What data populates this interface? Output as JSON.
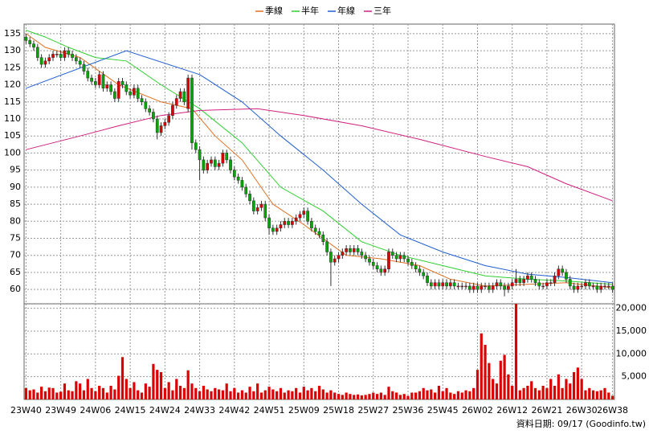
{
  "chart_data": [
    {
      "type": "candlestick",
      "categories": [
        "23W40",
        null,
        null,
        null,
        null,
        null,
        null,
        null,
        null,
        "23W49",
        null,
        null,
        null,
        null,
        null,
        null,
        null,
        null,
        "24W06",
        null,
        null,
        null,
        null,
        null,
        null,
        null,
        null,
        "24W15",
        null,
        null,
        null,
        null,
        null,
        null,
        null,
        null,
        "24W24",
        null,
        null,
        null,
        null,
        null,
        null,
        null,
        null,
        "24W33",
        null,
        null,
        null,
        null,
        null,
        null,
        null,
        null,
        "24W42",
        null,
        null,
        null,
        null,
        null,
        null,
        null,
        null,
        "24W51",
        null,
        null,
        null,
        null,
        null,
        null,
        null,
        null,
        "25W09",
        null,
        null,
        null,
        null,
        null,
        null,
        null,
        null,
        "25W18",
        null,
        null,
        null,
        null,
        null,
        null,
        null,
        null,
        "25W27",
        null,
        null,
        null,
        null,
        null,
        null,
        null,
        null,
        "25W36",
        null,
        null,
        null,
        null,
        null,
        null,
        null,
        null,
        "25W45",
        null,
        null,
        null,
        null,
        null,
        null,
        null,
        null,
        "26W02",
        null,
        null,
        null,
        null,
        null,
        null,
        null,
        null,
        "26W12",
        null,
        null,
        null,
        null,
        null,
        null,
        null,
        null,
        "26W21",
        null,
        null,
        null,
        null,
        null,
        null,
        null,
        null,
        "26W30",
        null,
        null,
        null,
        null,
        null,
        null,
        null,
        "26W38"
      ],
      "open": [
        134,
        133,
        132,
        131,
        128,
        126,
        127,
        128,
        129,
        129,
        128,
        130,
        129,
        128,
        127,
        126,
        124,
        122,
        121,
        120,
        123,
        119,
        120,
        118,
        116,
        121,
        120,
        118,
        117,
        119,
        116,
        115,
        113,
        112,
        110,
        106,
        108,
        109,
        111,
        114,
        116,
        118,
        113,
        122,
        103,
        101,
        98,
        95,
        97,
        98,
        96,
        97,
        100,
        98,
        95,
        93,
        92,
        90,
        88,
        86,
        83,
        84,
        85,
        81,
        78,
        77,
        78,
        79,
        80,
        79,
        80,
        81,
        82,
        83,
        80,
        78,
        77,
        76,
        74,
        71,
        68,
        69,
        70,
        71,
        72,
        71,
        72,
        71,
        70,
        69,
        68,
        67,
        66,
        65,
        66,
        71,
        70,
        69,
        70,
        69,
        68,
        67,
        66,
        65,
        64,
        62,
        61,
        62,
        61,
        62,
        61,
        62,
        61,
        61,
        61,
        61,
        60,
        61,
        60,
        61,
        61,
        60,
        61,
        62,
        61,
        60,
        61,
        62,
        63,
        62,
        63,
        64,
        63,
        62,
        61,
        61,
        62,
        62,
        64,
        66,
        65,
        63,
        61,
        60,
        61,
        61,
        62,
        61,
        61,
        60,
        61,
        61,
        61
      ],
      "high": [
        135,
        134,
        133,
        132,
        129,
        128,
        129,
        130,
        130,
        130,
        131,
        131,
        130,
        129,
        128,
        127,
        125,
        123,
        122,
        124,
        124,
        121,
        121,
        119,
        122,
        122,
        121,
        119,
        120,
        120,
        117,
        116,
        114,
        113,
        111,
        109,
        110,
        112,
        115,
        117,
        119,
        119,
        123,
        123,
        104,
        102,
        99,
        98,
        99,
        99,
        98,
        101,
        101,
        99,
        96,
        94,
        93,
        91,
        89,
        87,
        85,
        86,
        86,
        82,
        79,
        79,
        80,
        81,
        81,
        81,
        82,
        83,
        84,
        84,
        81,
        79,
        78,
        77,
        75,
        72,
        70,
        71,
        72,
        73,
        73,
        73,
        73,
        72,
        71,
        70,
        69,
        68,
        67,
        67,
        72,
        72,
        71,
        71,
        71,
        70,
        69,
        68,
        67,
        66,
        65,
        63,
        63,
        63,
        63,
        63,
        63,
        63,
        62,
        62,
        62,
        62,
        62,
        62,
        62,
        62,
        62,
        62,
        63,
        63,
        62,
        62,
        63,
        66,
        64,
        64,
        65,
        65,
        64,
        63,
        62,
        63,
        63,
        65,
        67,
        67,
        66,
        64,
        62,
        62,
        62,
        63,
        63,
        62,
        62,
        62,
        62,
        62,
        62
      ],
      "low": [
        132,
        131,
        130,
        127,
        125,
        125,
        126,
        127,
        128,
        127,
        127,
        128,
        127,
        126,
        125,
        123,
        121,
        120,
        119,
        119,
        118,
        118,
        117,
        115,
        115,
        119,
        117,
        116,
        116,
        115,
        114,
        112,
        111,
        109,
        104,
        105,
        107,
        108,
        110,
        113,
        115,
        114,
        112,
        101,
        100,
        92,
        94,
        94,
        96,
        95,
        95,
        96,
        97,
        94,
        92,
        91,
        89,
        87,
        85,
        82,
        82,
        83,
        80,
        76,
        76,
        76,
        77,
        78,
        78,
        78,
        79,
        80,
        81,
        79,
        77,
        76,
        75,
        73,
        70,
        61,
        67,
        68,
        69,
        70,
        70,
        70,
        70,
        69,
        68,
        67,
        66,
        65,
        64,
        64,
        65,
        69,
        68,
        68,
        68,
        67,
        66,
        65,
        64,
        63,
        61,
        60,
        60,
        60,
        60,
        60,
        60,
        60,
        60,
        60,
        60,
        59,
        59,
        59,
        59,
        60,
        59,
        59,
        60,
        60,
        58,
        59,
        60,
        61,
        61,
        61,
        62,
        62,
        61,
        60,
        60,
        60,
        61,
        61,
        63,
        64,
        62,
        60,
        59,
        59,
        60,
        60,
        60,
        60,
        59,
        59,
        60,
        60,
        59
      ],
      "close": [
        133,
        132,
        131,
        128,
        126,
        127,
        128,
        129,
        129,
        128,
        130,
        129,
        128,
        127,
        126,
        124,
        122,
        121,
        120,
        123,
        119,
        120,
        118,
        116,
        121,
        120,
        118,
        117,
        119,
        116,
        115,
        113,
        112,
        110,
        106,
        108,
        109,
        111,
        114,
        116,
        118,
        115,
        122,
        103,
        101,
        98,
        95,
        97,
        98,
        96,
        97,
        100,
        98,
        95,
        93,
        92,
        90,
        88,
        86,
        83,
        84,
        85,
        81,
        78,
        77,
        78,
        79,
        80,
        79,
        80,
        81,
        82,
        83,
        80,
        78,
        77,
        76,
        74,
        71,
        68,
        69,
        70,
        71,
        72,
        71,
        72,
        71,
        70,
        69,
        68,
        67,
        66,
        65,
        66,
        71,
        70,
        69,
        70,
        69,
        68,
        67,
        66,
        65,
        64,
        62,
        61,
        62,
        61,
        62,
        61,
        62,
        61,
        61,
        61,
        61,
        60,
        61,
        60,
        61,
        61,
        60,
        61,
        62,
        61,
        60,
        61,
        62,
        63,
        62,
        63,
        64,
        63,
        62,
        61,
        61,
        62,
        62,
        64,
        66,
        65,
        63,
        61,
        60,
        61,
        61,
        62,
        61,
        61,
        60,
        61,
        61,
        61,
        60
      ],
      "up_color": "#e00000",
      "down_color": "#00a800",
      "series": [
        {
          "name": "季線",
          "color": "#e07020",
          "x": [
            0,
            5,
            14,
            24,
            35,
            43,
            49,
            56,
            64,
            72,
            83,
            92,
            102,
            110,
            119,
            130,
            140,
            152
          ],
          "values": [
            135,
            131,
            128,
            120,
            115,
            113,
            105,
            98,
            85,
            79,
            70,
            69,
            67,
            63,
            61,
            61.5,
            62,
            60.5
          ]
        },
        {
          "name": "半年",
          "color": "#30d030",
          "x": [
            0,
            5,
            11,
            18,
            26,
            35,
            45,
            56,
            66,
            77,
            87,
            97,
            108,
            119,
            130,
            140,
            152
          ],
          "values": [
            136,
            134,
            131,
            128,
            127,
            120,
            113,
            103,
            90,
            83,
            74,
            70,
            67,
            64,
            63,
            62.5,
            61.5
          ]
        },
        {
          "name": "年線",
          "color": "#2060d0",
          "x": [
            0,
            26,
            45,
            56,
            66,
            77,
            87,
            97,
            108,
            119,
            130,
            140,
            152
          ],
          "values": [
            119,
            130,
            123,
            115,
            105,
            95,
            85,
            76,
            71,
            67,
            64.5,
            63.5,
            62
          ]
        },
        {
          "name": "三年",
          "color": "#d02080",
          "x": [
            0,
            14,
            24,
            35,
            45,
            60,
            72,
            87,
            102,
            119,
            130,
            140,
            152
          ],
          "values": [
            101,
            105,
            108,
            111,
            112.5,
            113,
            111,
            108,
            104,
            99,
            96,
            91,
            86
          ]
        }
      ],
      "ylim": [
        55.8,
        137.8
      ],
      "yticks": [
        60,
        65,
        70,
        75,
        80,
        85,
        90,
        95,
        100,
        105,
        110,
        115,
        120,
        125,
        130,
        135
      ],
      "grid": true
    },
    {
      "type": "bar",
      "color": "#dd0000",
      "values": [
        2500,
        2000,
        2200,
        1500,
        2800,
        1800,
        2600,
        2500,
        1500,
        1700,
        3500,
        2000,
        1800,
        4000,
        3500,
        2000,
        4500,
        2500,
        1800,
        3000,
        2500,
        1500,
        3000,
        2200,
        5200,
        9300,
        4500,
        2500,
        3800,
        2000,
        1500,
        3500,
        2800,
        7800,
        6500,
        6000,
        2500,
        3800,
        2000,
        4500,
        3000,
        2500,
        6400,
        3500,
        2500,
        1800,
        3000,
        2200,
        1800,
        2500,
        2200,
        2000,
        3500,
        1800,
        2500,
        1500,
        2000,
        1500,
        2800,
        1800,
        3500,
        1500,
        2000,
        2800,
        2200,
        1800,
        2500,
        1500,
        2000,
        1800,
        2500,
        1500,
        2800,
        2000,
        2500,
        1800,
        3000,
        2200,
        1500,
        2000,
        1500,
        1200,
        1000,
        1500,
        1200,
        1000,
        1100,
        900,
        1000,
        1200,
        1500,
        1200,
        1500,
        1000,
        2800,
        1800,
        1500,
        1000,
        1200,
        800,
        1500,
        1500,
        1800,
        2500,
        2000,
        2200,
        1500,
        3000,
        1800,
        2500,
        1500,
        1200,
        1800,
        1500,
        2000,
        1800,
        2500,
        6500,
        14500,
        12000,
        8000,
        4500,
        3500,
        8500,
        9800,
        5500,
        3000,
        21000,
        2000,
        2500,
        3000,
        4000,
        2500,
        2000,
        3000,
        2500,
        4500,
        3000,
        5500,
        2500,
        4500,
        3500,
        6000,
        7000,
        4500,
        2000,
        2500,
        2000,
        1800,
        2000,
        2500,
        1500,
        800
      ],
      "ylim": [
        0,
        21000
      ],
      "yticks": [
        {
          "value": 5000,
          "label": "5,000"
        },
        {
          "value": 10000,
          "label": "10,000"
        },
        {
          "value": 15000,
          "label": "15,000"
        },
        {
          "value": 20000,
          "label": "20,000"
        }
      ],
      "grid": true
    }
  ],
  "footer": "資料日期: 09/17 (Goodinfo.tw)"
}
